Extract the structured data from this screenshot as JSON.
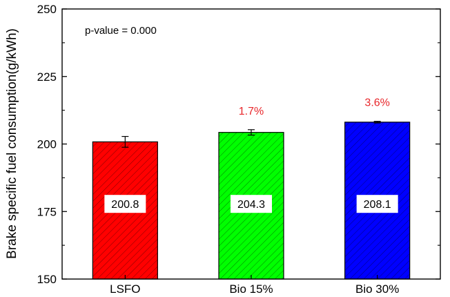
{
  "chart_data": {
    "type": "bar",
    "title": "",
    "xlabel": "",
    "ylabel": "Brake specific fuel consumption(g/kWh)",
    "ylim": [
      150,
      250
    ],
    "yticks": [
      150,
      175,
      200,
      225,
      250
    ],
    "categories": [
      "LSFO",
      "Bio 15%",
      "Bio 30%"
    ],
    "values": [
      200.8,
      204.3,
      208.1
    ],
    "value_labels": [
      "200.8",
      "204.3",
      "208.1"
    ],
    "errors": [
      2.0,
      1.0,
      0.3
    ],
    "colors": [
      "#ff0000",
      "#00ff00",
      "#0000ff"
    ],
    "fill_pattern": "diagonal-hatch",
    "increase_labels": [
      "",
      "1.7%",
      "3.6%"
    ],
    "increase_label_color": "#e8262a",
    "annotation": "p-value = 0.000",
    "grid": false,
    "legend": "none"
  }
}
